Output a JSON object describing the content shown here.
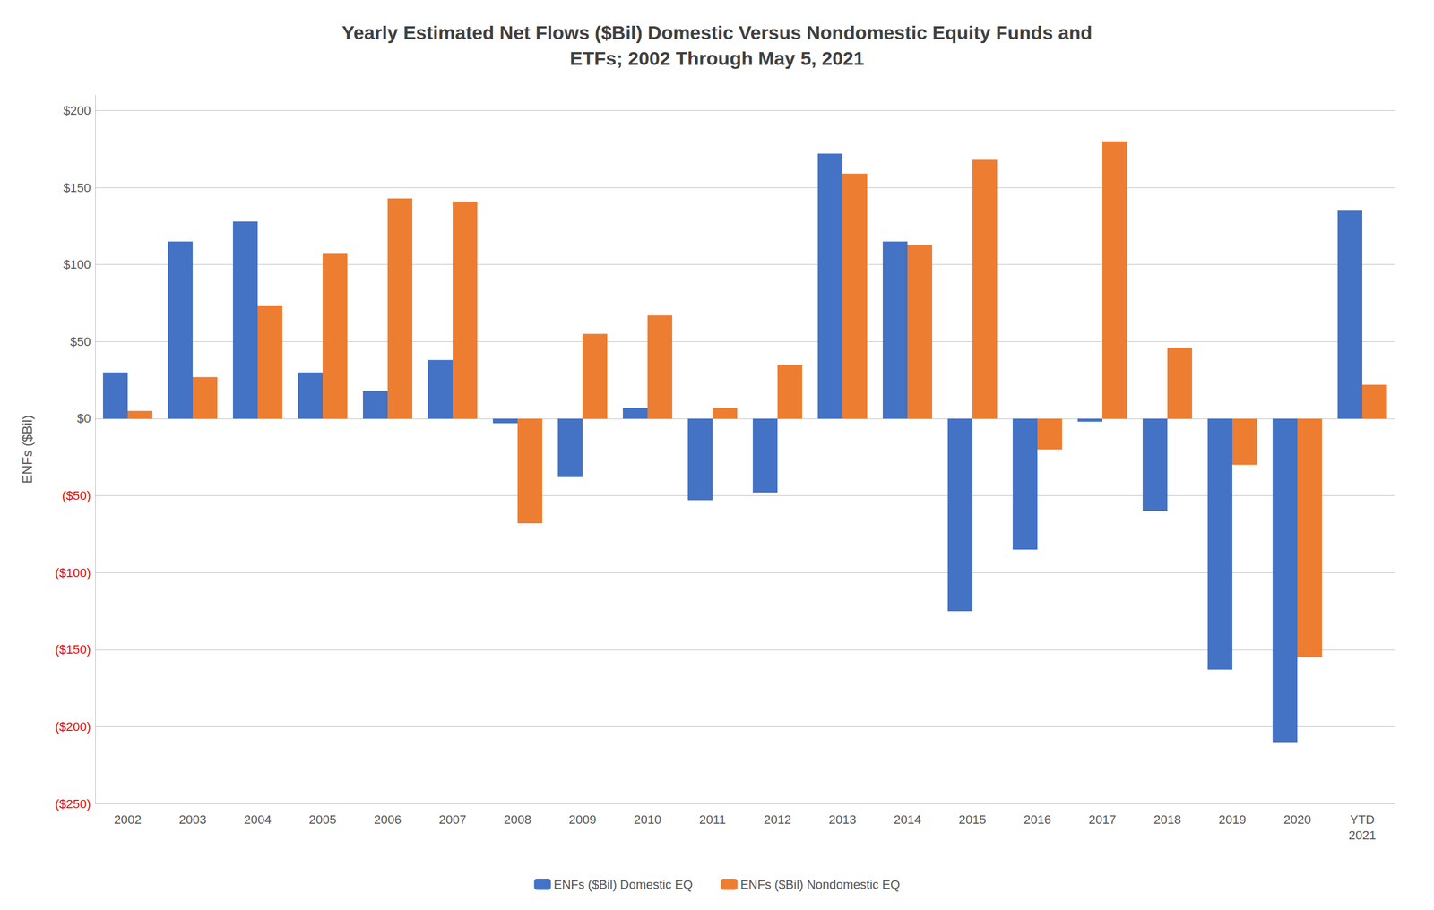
{
  "chart_data": {
    "type": "bar",
    "title": "Yearly Estimated Net Flows ($Bil) Domestic Versus Nondomestic Equity Funds and\nETFs; 2002 Through May 5, 2021",
    "ylabel": "ENFs ($Bil)",
    "categories": [
      "2002",
      "2003",
      "2004",
      "2005",
      "2006",
      "2007",
      "2008",
      "2009",
      "2010",
      "2011",
      "2012",
      "2013",
      "2014",
      "2015",
      "2016",
      "2017",
      "2018",
      "2019",
      "2020",
      "YTD\n2021"
    ],
    "series": [
      {
        "name": "ENFs ($Bil) Domestic EQ",
        "color": "#4472C4",
        "values": [
          30,
          115,
          128,
          30,
          18,
          38,
          -3,
          -38,
          7,
          -53,
          -48,
          172,
          115,
          -125,
          -85,
          -2,
          -60,
          -163,
          -210,
          135
        ]
      },
      {
        "name": "ENFs ($Bil) Nondomestic EQ",
        "color": "#ED7D31",
        "values": [
          5,
          27,
          73,
          107,
          143,
          141,
          -68,
          55,
          67,
          7,
          35,
          159,
          113,
          168,
          -20,
          180,
          46,
          -30,
          -155,
          22
        ]
      }
    ],
    "ylim": [
      -250,
      210
    ],
    "yticks": [
      {
        "value": -250,
        "label": "($250)"
      },
      {
        "value": -200,
        "label": "($200)"
      },
      {
        "value": -150,
        "label": "($150)"
      },
      {
        "value": -100,
        "label": "($100)"
      },
      {
        "value": -50,
        "label": "($50)"
      },
      {
        "value": 0,
        "label": "$0"
      },
      {
        "value": 50,
        "label": "$50"
      },
      {
        "value": 100,
        "label": "$100"
      },
      {
        "value": 150,
        "label": "$150"
      },
      {
        "value": 200,
        "label": "$200"
      }
    ],
    "grid": true,
    "legend": "bottom"
  }
}
